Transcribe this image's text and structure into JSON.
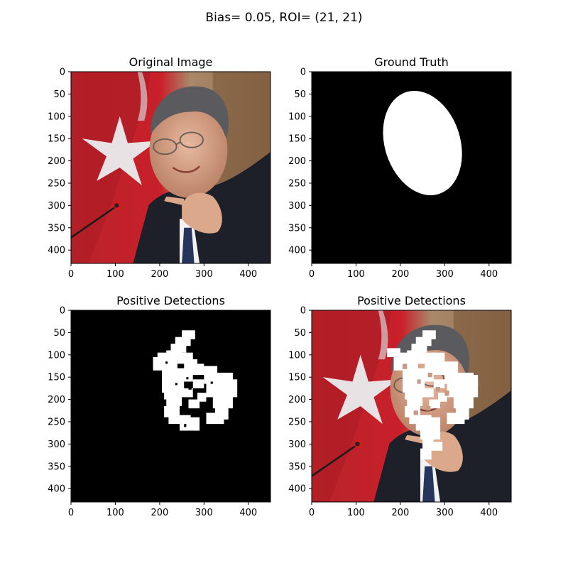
{
  "suptitle": "Bias= 0.05, ROI= (21, 21)",
  "chart_data": [
    {
      "type": "image",
      "title": "Original Image",
      "content": "photo",
      "xlim": [
        0,
        450
      ],
      "ylim": [
        430,
        0
      ],
      "xticks": [
        0,
        100,
        200,
        300,
        400
      ],
      "yticks": [
        0,
        50,
        100,
        150,
        200,
        250,
        300,
        350,
        400
      ]
    },
    {
      "type": "image",
      "title": "Ground Truth",
      "content": "mask",
      "xlim": [
        0,
        450
      ],
      "ylim": [
        430,
        0
      ],
      "xticks": [
        0,
        100,
        200,
        300,
        400
      ],
      "yticks": [
        0,
        50,
        100,
        150,
        200,
        250,
        300,
        350,
        400
      ],
      "ellipse": {
        "cx": 250,
        "cy": 160,
        "rx": 85,
        "ry": 120,
        "rotation": -18
      }
    },
    {
      "type": "image",
      "title": "Positive Detections",
      "content": "detections",
      "xlim": [
        0,
        450
      ],
      "ylim": [
        430,
        0
      ],
      "xticks": [
        0,
        100,
        200,
        300,
        400
      ],
      "yticks": [
        0,
        50,
        100,
        150,
        200,
        250,
        300,
        350,
        400
      ]
    },
    {
      "type": "image",
      "title": "Positive Detections",
      "content": "photo+detections",
      "xlim": [
        0,
        450
      ],
      "ylim": [
        430,
        0
      ],
      "xticks": [
        0,
        100,
        200,
        300,
        400
      ],
      "yticks": [
        0,
        50,
        100,
        150,
        200,
        250,
        300,
        350,
        400
      ]
    }
  ],
  "detections": [
    [
      250,
      45,
      280,
      65
    ],
    [
      235,
      60,
      270,
      80
    ],
    [
      225,
      75,
      260,
      95
    ],
    [
      215,
      90,
      250,
      110
    ],
    [
      195,
      95,
      245,
      110
    ],
    [
      185,
      105,
      240,
      135
    ],
    [
      240,
      95,
      275,
      120
    ],
    [
      255,
      110,
      285,
      135
    ],
    [
      205,
      130,
      275,
      160
    ],
    [
      260,
      120,
      300,
      145
    ],
    [
      290,
      125,
      330,
      145
    ],
    [
      300,
      140,
      365,
      165
    ],
    [
      305,
      155,
      375,
      195
    ],
    [
      320,
      185,
      365,
      220
    ],
    [
      325,
      215,
      355,
      245
    ],
    [
      305,
      230,
      345,
      255
    ],
    [
      205,
      155,
      255,
      185
    ],
    [
      210,
      175,
      240,
      200
    ],
    [
      215,
      195,
      250,
      215
    ],
    [
      210,
      215,
      245,
      240
    ],
    [
      220,
      235,
      270,
      255
    ],
    [
      245,
      240,
      290,
      270
    ],
    [
      240,
      175,
      275,
      195
    ],
    [
      275,
      155,
      300,
      175
    ],
    [
      265,
      200,
      290,
      220
    ],
    [
      285,
      185,
      305,
      205
    ]
  ],
  "holes": [
    [
      213,
      115,
      218,
      120
    ],
    [
      260,
      150,
      265,
      155
    ],
    [
      265,
      172,
      272,
      178
    ],
    [
      275,
      177,
      282,
      182
    ],
    [
      295,
      180,
      300,
      185
    ],
    [
      235,
      163,
      240,
      168
    ],
    [
      315,
      160,
      320,
      165
    ],
    [
      300,
      235,
      305,
      240
    ],
    [
      255,
      255,
      260,
      262
    ]
  ],
  "holes_photo": [
    [
      205,
      120,
      215,
      132
    ],
    [
      262,
      140,
      272,
      150
    ],
    [
      238,
      155,
      246,
      165
    ],
    [
      280,
      172,
      290,
      182
    ],
    [
      300,
      180,
      310,
      192
    ],
    [
      258,
      215,
      268,
      225
    ],
    [
      230,
      225,
      240,
      235
    ],
    [
      295,
      225,
      305,
      232
    ]
  ],
  "detections_photo_extra": [
    [
      170,
      85,
      200,
      105
    ],
    [
      195,
      100,
      235,
      125
    ],
    [
      270,
      95,
      300,
      115
    ],
    [
      285,
      115,
      330,
      135
    ],
    [
      320,
      145,
      375,
      170
    ],
    [
      235,
      255,
      280,
      270
    ],
    [
      245,
      270,
      290,
      290
    ],
    [
      250,
      285,
      275,
      310
    ],
    [
      265,
      295,
      295,
      315
    ],
    [
      245,
      310,
      270,
      335
    ]
  ]
}
